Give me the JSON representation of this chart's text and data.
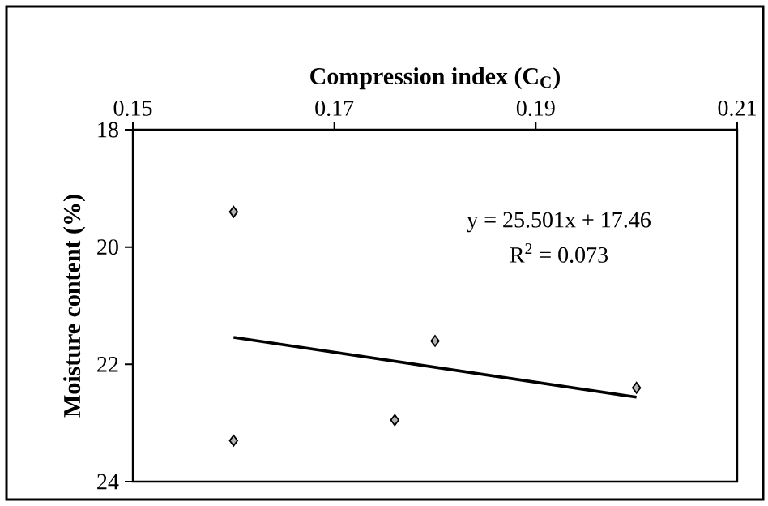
{
  "chart_data": {
    "type": "scatter",
    "xlabel": "Compression index (C$_{C}$)",
    "ylabel": "Moisture content (%)",
    "xlim": [
      0.15,
      0.21
    ],
    "xticks": [
      0.15,
      0.17,
      0.19,
      0.21
    ],
    "ylim": [
      24,
      18
    ],
    "yticks": [
      18,
      20,
      22,
      24
    ],
    "series": [
      {
        "color": "#000000",
        "marker": "diamond",
        "x": [
          0.16,
          0.16,
          0.176,
          0.18,
          0.2
        ],
        "values": [
          19.4,
          23.3,
          22.95,
          21.6,
          22.4
        ]
      },
      {
        "type": "line",
        "color": "#000000",
        "marker": "none",
        "x": [
          0.16,
          0.2
        ],
        "values": [
          21.54,
          22.56
        ]
      }
    ],
    "annotations": [
      "y = 25.501x + 17.46",
      "R$^{2}$ = 0.073"
    ],
    "grid": false
  }
}
